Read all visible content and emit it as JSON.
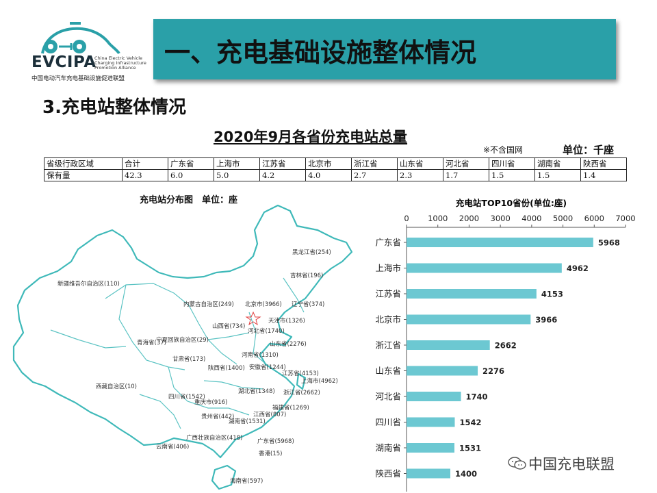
{
  "header": {
    "logo_abbr": "EVCIPA",
    "logo_en": "China Electric Vehicle Charging Infrastructure Promotion Alliance",
    "logo_cn": "中国电动汽车充电基础设施促进联盟",
    "title": "一、充电基础设施整体情况",
    "title_bar_color": "#2aa0a8"
  },
  "subtitle": "3.充电站整体情况",
  "table": {
    "title": "2020年9月各省份充电站总量",
    "note": "※不含国网",
    "unit": "单位：千座",
    "header_label": "省级行政区域",
    "row_label": "保有量",
    "columns": [
      "合计",
      "广东省",
      "上海市",
      "江苏省",
      "北京市",
      "浙江省",
      "山东省",
      "河北省",
      "四川省",
      "湖南省",
      "陕西省"
    ],
    "values": [
      "42.3",
      "6.0",
      "5.0",
      "4.2",
      "4.0",
      "2.7",
      "2.3",
      "1.7",
      "1.5",
      "1.5",
      "1.4"
    ]
  },
  "map": {
    "title": "充电站分布图　单位：座",
    "labels": [
      "黑龙江省(254)",
      "吉林省(196)",
      "新疆维吾尔自治区(110)",
      "内蒙古自治区(249)",
      "北京市(3966)",
      "辽宁省(374)",
      "天津市(1326)",
      "山西省(734)",
      "河北省(1740)",
      "宁夏回族自治区(29)",
      "青海省(37)",
      "山东省(2276)",
      "甘肃省(173)",
      "河南省(1310)",
      "陕西省(1400)",
      "安徽省(1244)",
      "江苏省(4153)",
      "上海市(4962)",
      "西藏自治区(10)",
      "四川省(1542)",
      "湖北省(1348)",
      "重庆市(916)",
      "浙江省(2662)",
      "福建省(1269)",
      "江西省(807)",
      "贵州省(442)",
      "湖南省(1531)",
      "云南省(406)",
      "广西壮族自治区(418)",
      "广东省(5968)",
      "香港(15)",
      "海南省(597)"
    ],
    "line_color": "#3fb9b9"
  },
  "chart_data": {
    "type": "bar",
    "orientation": "horizontal",
    "title": "充电站TOP10省份(单位:座)",
    "categories": [
      "广东省",
      "上海市",
      "江苏省",
      "北京市",
      "浙江省",
      "山东省",
      "河北省",
      "四川省",
      "湖南省",
      "陕西省"
    ],
    "values": [
      5968,
      4962,
      4153,
      3966,
      2662,
      2276,
      1740,
      1542,
      1531,
      1400
    ],
    "xlim": [
      0,
      7000
    ],
    "xticks": [
      0,
      1000,
      2000,
      3000,
      4000,
      5000,
      6000,
      7000
    ],
    "axis_position": "top",
    "grid": false,
    "legend": "none",
    "bar_color": "#6cc8d2"
  },
  "watermark": "中国充电联盟",
  "watermark_icon": "wechat-icon"
}
